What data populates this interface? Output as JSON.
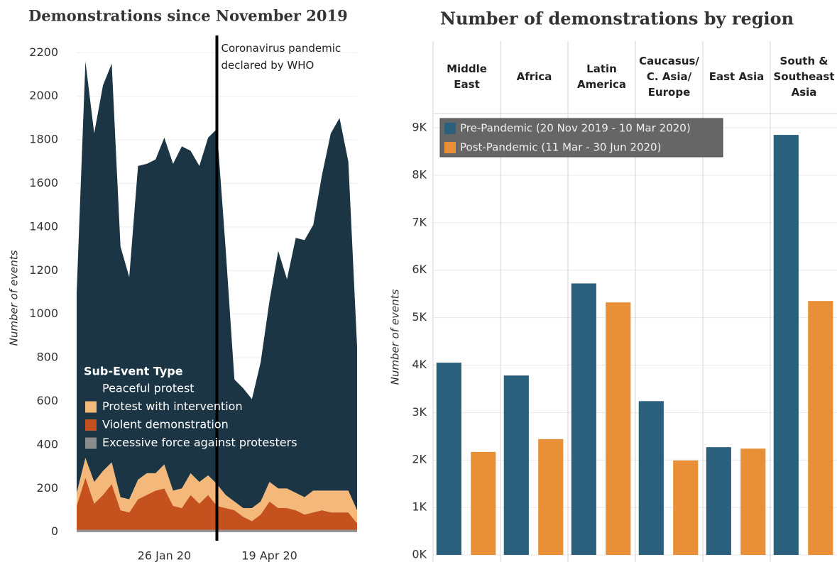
{
  "chart_data": [
    {
      "type": "area",
      "stacked": true,
      "title": "Demonstrations since November 2019",
      "y_label": "Number of events",
      "legend_title": "Sub-Event Type",
      "annotation": "Coronavirus pandemic declared by WHO",
      "categories": [
        null,
        null,
        null,
        null,
        null,
        null,
        null,
        null,
        null,
        null,
        "26 Jan 20",
        null,
        null,
        null,
        null,
        null,
        null,
        null,
        null,
        null,
        null,
        null,
        "19 Apr 20",
        null,
        null,
        null,
        null,
        null,
        null,
        null,
        null,
        null,
        null
      ],
      "series": [
        {
          "name": "Peaceful protest",
          "color": "#1c3545",
          "values": [
            920,
            1820,
            1600,
            1770,
            1830,
            1150,
            1020,
            1440,
            1420,
            1440,
            1500,
            1500,
            1570,
            1480,
            1450,
            1550,
            1630,
            1130,
            560,
            550,
            500,
            640,
            830,
            1090,
            960,
            1170,
            1180,
            1220,
            1450,
            1640,
            1710,
            1510,
            750
          ]
        },
        {
          "name": "Protest with intervention",
          "color": "#f4b87a",
          "values": [
            60,
            90,
            100,
            110,
            100,
            60,
            60,
            90,
            100,
            80,
            110,
            70,
            90,
            100,
            100,
            90,
            100,
            60,
            40,
            40,
            60,
            60,
            90,
            90,
            90,
            80,
            80,
            100,
            90,
            100,
            100,
            100,
            60
          ]
        },
        {
          "name": "Violent demonstration",
          "color": "#c5511f",
          "values": [
            110,
            240,
            120,
            160,
            210,
            90,
            80,
            140,
            160,
            180,
            190,
            110,
            100,
            160,
            120,
            160,
            110,
            100,
            90,
            60,
            40,
            70,
            130,
            100,
            100,
            90,
            70,
            80,
            90,
            80,
            80,
            80,
            30
          ]
        },
        {
          "name": "Excessive force against protesters",
          "color": "#8c8c8c",
          "values": [
            10,
            10,
            10,
            10,
            10,
            10,
            10,
            10,
            10,
            10,
            10,
            10,
            10,
            10,
            10,
            10,
            10,
            10,
            10,
            10,
            10,
            10,
            10,
            10,
            10,
            10,
            10,
            10,
            10,
            10,
            10,
            10,
            10
          ]
        }
      ],
      "ylim": [
        -40,
        2240
      ],
      "yticks": [
        0,
        200,
        400,
        600,
        800,
        1000,
        1200,
        1400,
        1600,
        1800,
        2000,
        2200
      ],
      "grid": true
    },
    {
      "type": "bar",
      "title": "Number of demonstrations by region",
      "y_label": "Number of events",
      "categories": [
        "Middle East",
        "Africa",
        "Latin America",
        "Caucasus/ C. Asia/ Europe",
        "East Asia",
        "South & Southeast Asia"
      ],
      "series": [
        {
          "name": "Pre-Pandemic (20 Nov 2019 - 10 Mar 2020)",
          "color": "#2a607c",
          "values": [
            4050,
            3780,
            5720,
            3240,
            2270,
            8850
          ]
        },
        {
          "name": "Post-Pandemic (11 Mar - 30 Jun 2020)",
          "color": "#e98f37",
          "values": [
            2170,
            2440,
            5320,
            1990,
            2240,
            5350
          ]
        }
      ],
      "ylim": [
        0,
        9300
      ],
      "yticks": [
        {
          "value": 0,
          "label": "0K"
        },
        {
          "value": 1000,
          "label": "1K"
        },
        {
          "value": 2000,
          "label": "2K"
        },
        {
          "value": 3000,
          "label": "3K"
        },
        {
          "value": 4000,
          "label": "4K"
        },
        {
          "value": 5000,
          "label": "5K"
        },
        {
          "value": 6000,
          "label": "6K"
        },
        {
          "value": 7000,
          "label": "7K"
        },
        {
          "value": 8000,
          "label": "8K"
        },
        {
          "value": 9000,
          "label": "9K"
        }
      ],
      "grid": true,
      "legend": "top-left"
    }
  ]
}
